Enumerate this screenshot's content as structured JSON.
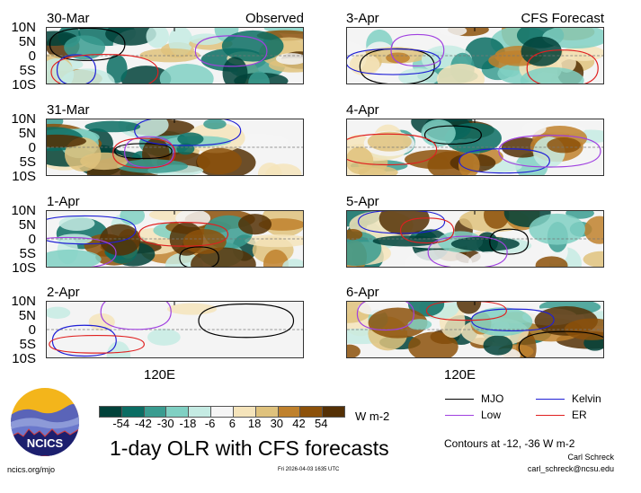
{
  "chart_data": {
    "type": "heatmap",
    "title": "1-day OLR with CFS forecasts",
    "variable": "OLR anomaly",
    "units": "W m-2",
    "y_ticks": [
      "10N",
      "5N",
      "0",
      "5S",
      "10S"
    ],
    "x_label": "120E",
    "colorbar": {
      "labels": [
        "-54",
        "-42",
        "-30",
        "-18",
        "-6",
        "6",
        "18",
        "30",
        "42",
        "54"
      ],
      "colors": [
        "#01423a",
        "#0b6d63",
        "#3a9c90",
        "#80d0c3",
        "#c5ebe3",
        "#f5f5f5",
        "#f5e4bb",
        "#dfc27d",
        "#bf812d",
        "#8c510a",
        "#543005"
      ]
    },
    "contour_note": "Contours at -12, -36 W m-2",
    "legend": [
      {
        "name": "MJO",
        "color": "#000000"
      },
      {
        "name": "Kelvin",
        "color": "#1f1fd6"
      },
      {
        "name": "Low",
        "color": "#a040e0"
      },
      {
        "name": "ER",
        "color": "#e02020"
      }
    ],
    "panels": [
      {
        "date": "30-Mar",
        "tag": "Observed",
        "column": "left",
        "row": 0
      },
      {
        "date": "31-Mar",
        "tag": "",
        "column": "left",
        "row": 1
      },
      {
        "date": "1-Apr",
        "tag": "",
        "column": "left",
        "row": 2
      },
      {
        "date": "2-Apr",
        "tag": "",
        "column": "left",
        "row": 3
      },
      {
        "date": "3-Apr",
        "tag": "CFS Forecast",
        "column": "right",
        "row": 0
      },
      {
        "date": "4-Apr",
        "tag": "",
        "column": "right",
        "row": 1
      },
      {
        "date": "5-Apr",
        "tag": "",
        "column": "right",
        "row": 2
      },
      {
        "date": "6-Apr",
        "tag": "",
        "column": "right",
        "row": 3
      }
    ]
  },
  "logo_text": "NCICS",
  "site": "ncics.org/mjo",
  "timestamp": "Fri 2026-04-03 1635 UTC",
  "author": "Carl Schreck",
  "email": "carl_schreck@ncsu.edu"
}
